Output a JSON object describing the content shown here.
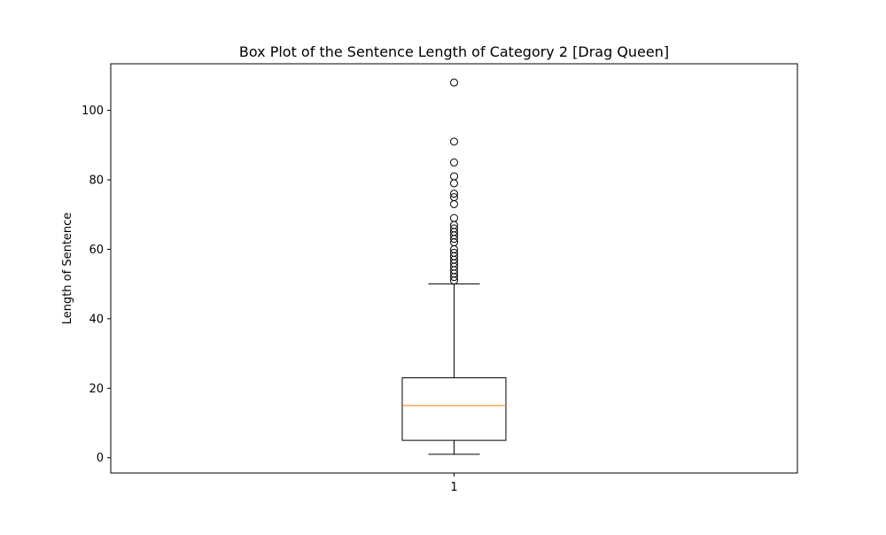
{
  "chart_data": {
    "type": "box",
    "title": "Box Plot of the Sentence Length of Category 2 [Drag Queen]",
    "xlabel": "",
    "ylabel": "Length of Sentence",
    "categories": [
      "1"
    ],
    "ylim": [
      -4.4,
      113.4
    ],
    "yticks": [
      0,
      20,
      40,
      60,
      80,
      100
    ],
    "ytick_labels": [
      "0",
      "20",
      "40",
      "60",
      "80",
      "100"
    ],
    "grid": false,
    "series": [
      {
        "whisker_low": 1,
        "q1": 5,
        "median": 15,
        "q3": 23,
        "whisker_high": 50,
        "outliers": [
          51,
          52,
          53,
          54,
          55,
          56,
          57,
          58,
          59,
          60,
          62,
          63,
          64,
          65,
          66,
          67,
          69,
          73,
          75,
          76,
          79,
          81,
          85,
          91,
          108
        ]
      }
    ],
    "colors": {
      "box": "#000000",
      "median": "#ff7f0e",
      "whisker": "#000000",
      "outlier_edge": "#000000"
    }
  }
}
